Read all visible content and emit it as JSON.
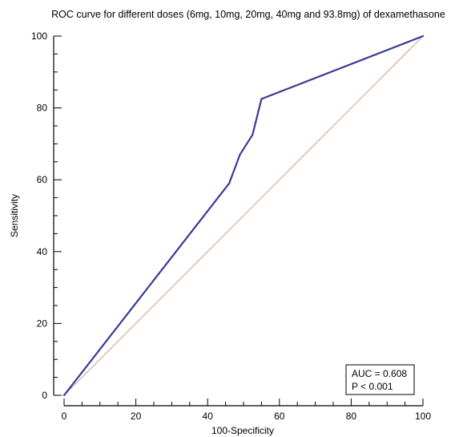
{
  "chart_data": {
    "type": "line",
    "title": "ROC curve for different doses (6mg, 10mg, 20mg, 40mg and 93.8mg) of dexamethasone",
    "xlabel": "100-Specificity",
    "ylabel": "Sensitivity",
    "xlim": [
      0,
      100
    ],
    "ylim": [
      0,
      100
    ],
    "x_ticks": [
      "0",
      "20",
      "40",
      "60",
      "80",
      "100"
    ],
    "y_ticks": [
      "0",
      "20",
      "40",
      "60",
      "80",
      "100"
    ],
    "grid": false,
    "series": [
      {
        "x": [
          0,
          46,
          49,
          52.5,
          55,
          100
        ],
        "y": [
          0,
          59,
          67,
          72.5,
          82.5,
          100
        ],
        "color": "#3a3a98"
      },
      {
        "x": [
          0,
          100
        ],
        "y": [
          0,
          100
        ],
        "color": "#c88a78",
        "style": "reference"
      }
    ],
    "annotation": {
      "lines": [
        "AUC = 0.608",
        "P < 0.001"
      ],
      "placement": "bottom-right"
    }
  }
}
